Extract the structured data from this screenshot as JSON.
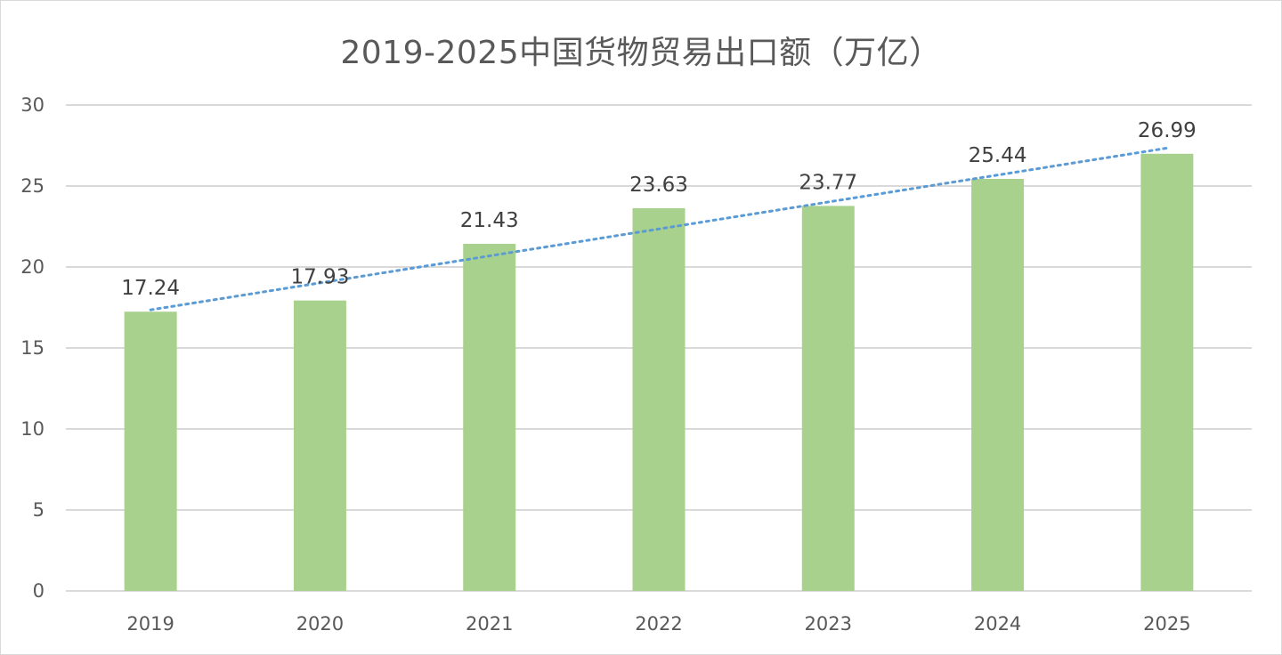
{
  "chart_data": {
    "type": "bar",
    "title": "2019-2025中国货物贸易出口额（万亿）",
    "categories": [
      "2019",
      "2020",
      "2021",
      "2022",
      "2023",
      "2024",
      "2025"
    ],
    "values": [
      17.24,
      17.93,
      21.43,
      23.63,
      23.77,
      25.44,
      26.99
    ],
    "data_labels": [
      "17.24",
      "17.93",
      "21.43",
      "23.63",
      "23.77",
      "25.44",
      "26.99"
    ],
    "ylim": [
      0,
      30
    ],
    "yticks": [
      0,
      5,
      10,
      15,
      20,
      25,
      30
    ],
    "ytick_labels": [
      "0",
      "5",
      "10",
      "15",
      "20",
      "25",
      "30"
    ],
    "grid": true,
    "trendline": "linear",
    "legend": "none",
    "xlabel": "",
    "ylabel": "",
    "colors": {
      "bar": "#a9d18e",
      "trendline": "#5b9bd5",
      "grid": "#d9d9d9",
      "text": "#595959"
    }
  }
}
